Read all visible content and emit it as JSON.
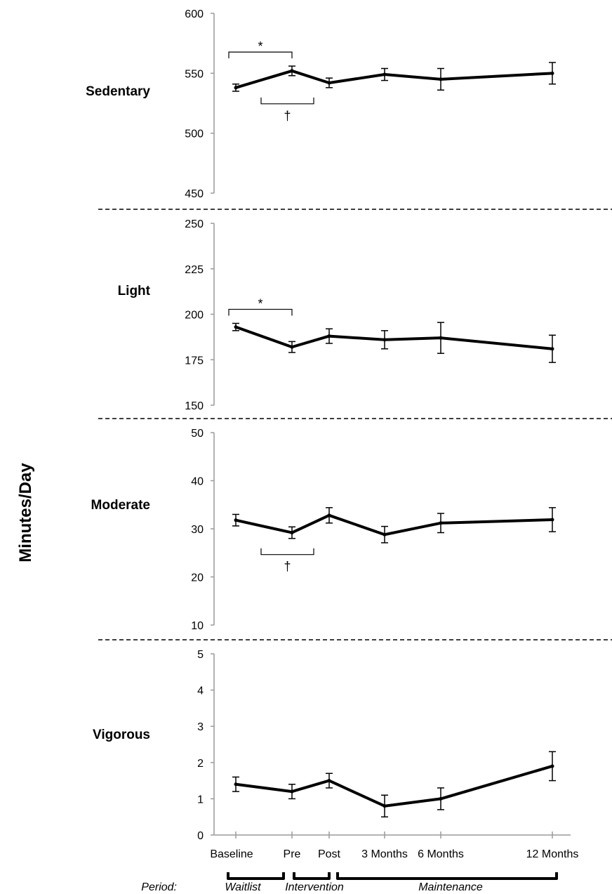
{
  "chart_data": {
    "type": "line",
    "ylabel": "Minutes/Day",
    "categories": [
      "Baseline",
      "Pre",
      "Post",
      "3 Months",
      "6 Months",
      "12 Months"
    ],
    "period_label": "Period:",
    "periods": [
      {
        "name": "Waitlist",
        "from": "Baseline",
        "to": "Pre"
      },
      {
        "name": "Intervention",
        "from": "Pre",
        "to": "Post"
      },
      {
        "name": "Maintenance",
        "from": "Post",
        "to": "12 Months"
      }
    ],
    "panels": [
      {
        "label": "Sedentary",
        "ylim": [
          450,
          600
        ],
        "yticks": [
          450,
          500,
          550,
          600
        ],
        "values": [
          538,
          552,
          542,
          549,
          545,
          550
        ],
        "err": [
          3,
          4,
          4,
          5,
          9,
          9
        ],
        "annotations": [
          {
            "symbol": "*",
            "from": "Baseline",
            "to": "Pre",
            "position": "above"
          },
          {
            "symbol": "†",
            "from": "Pre",
            "to": "Post",
            "position": "below"
          }
        ]
      },
      {
        "label": "Light",
        "ylim": [
          150,
          250
        ],
        "yticks": [
          150,
          175,
          200,
          225,
          250
        ],
        "values": [
          193,
          182,
          188,
          186,
          187,
          181
        ],
        "err": [
          2,
          3,
          4,
          5,
          8.5,
          7.5
        ],
        "annotations": [
          {
            "symbol": "*",
            "from": "Baseline",
            "to": "Pre",
            "position": "above"
          }
        ]
      },
      {
        "label": "Moderate",
        "ylim": [
          10,
          50
        ],
        "yticks": [
          10,
          20,
          30,
          40,
          50
        ],
        "values": [
          31.8,
          29.2,
          32.8,
          28.8,
          31.2,
          31.9
        ],
        "err": [
          1.2,
          1.2,
          1.6,
          1.7,
          2.0,
          2.5
        ],
        "annotations": [
          {
            "symbol": "†",
            "from": "Pre",
            "to": "Post",
            "position": "below"
          }
        ]
      },
      {
        "label": "Vigorous",
        "ylim": [
          0,
          5
        ],
        "yticks": [
          0,
          1,
          2,
          3,
          4,
          5
        ],
        "values": [
          1.4,
          1.2,
          1.5,
          0.8,
          1.0,
          1.9
        ],
        "err": [
          0.2,
          0.2,
          0.2,
          0.3,
          0.3,
          0.4
        ],
        "annotations": []
      }
    ]
  }
}
